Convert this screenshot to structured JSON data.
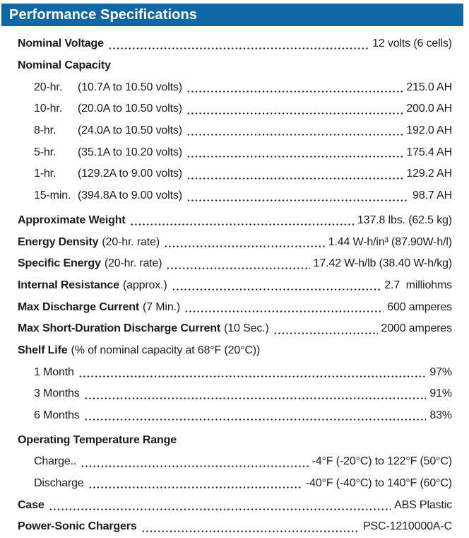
{
  "header": {
    "title": "Performance Specifications",
    "bg_color": "#0F67A5",
    "text_color": "#FFFFFF"
  },
  "rows": [
    {
      "bold": "Nominal Voltage",
      "value": "12 volts (6 cells)",
      "leader": true
    },
    {
      "bold": "Nominal Capacity"
    },
    {
      "indent": 1,
      "rate": "20-hr.",
      "text": "(10.7A to 10.50 volts)",
      "value": "215.0 AH",
      "leader": true
    },
    {
      "indent": 1,
      "rate": "10-hr.",
      "text": "(20.0A to 10.50 volts)",
      "value": "200.0 AH",
      "leader": true
    },
    {
      "indent": 1,
      "rate": "8-hr.",
      "text": "(24.0A to 10.50 volts)",
      "value": "192.0 AH",
      "leader": true
    },
    {
      "indent": 1,
      "rate": "5-hr.",
      "text": "(35.1A to 10.20 volts)",
      "value": "175.4 AH",
      "leader": true
    },
    {
      "indent": 1,
      "rate": "1-hr.",
      "text": "(129.2A to 9.00 volts)",
      "value": "129.2 AH",
      "leader": true
    },
    {
      "indent": 1,
      "rate": "15-min.",
      "text": "(394.8A to 9.00 volts)",
      "value": "98.7 AH",
      "leader": true
    },
    {
      "bold": "Approximate Weight",
      "value": "137.8 lbs. (62.5 kg)",
      "leader": true,
      "gap": true
    },
    {
      "bold": "Energy Density",
      "note": "(20-hr. rate)",
      "value": "1.44 W-h/in³ (87.90W-h/l)",
      "leader": true
    },
    {
      "bold": "Specific Energy",
      "note": "(20-hr. rate)",
      "value": "17.42 W-h/lb (38.40 W-h/kg)",
      "leader": true
    },
    {
      "bold": "Internal Resistance",
      "note": "(approx.)",
      "value": "2.7  milliohms",
      "leader": true
    },
    {
      "bold": "Max Discharge Current",
      "note": "(7 Min.)",
      "value": "600 amperes",
      "leader": true
    },
    {
      "bold": "Max Short-Duration Discharge Current",
      "note": "(10 Sec.)",
      "value": "2000 amperes",
      "leader": true
    },
    {
      "bold": "Shelf Life",
      "note": "(% of nominal capacity at 68°F (20°C))"
    },
    {
      "indent": 1,
      "text": "1 Month",
      "value": "97%",
      "leader": true
    },
    {
      "indent": 1,
      "text": "3 Months",
      "value": "91%",
      "leader": true
    },
    {
      "indent": 1,
      "text": "6 Months",
      "value": "83%",
      "leader": true
    },
    {
      "bold": "Operating Temperature Range",
      "gap": true
    },
    {
      "indent": 1,
      "text": "Charge..",
      "value": "-4°F (-20°C) to 122°F (50°C)",
      "leader": true
    },
    {
      "indent": 1,
      "text": "Discharge",
      "value": "-40°F (-40°C) to 140°F (60°C)",
      "leader": true
    },
    {
      "bold": "Case",
      "value": "ABS Plastic",
      "leader": true
    },
    {
      "bold": "Power-Sonic Chargers",
      "value": "PSC-1210000A-C",
      "leader": true
    }
  ]
}
